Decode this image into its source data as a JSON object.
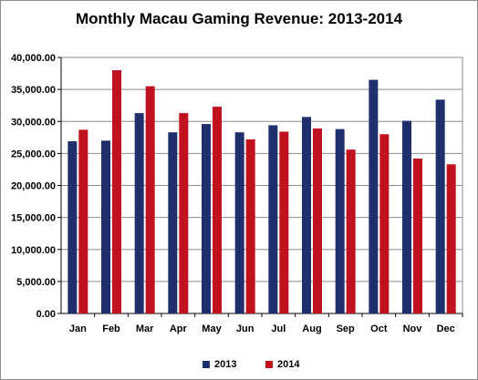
{
  "chart_data": {
    "type": "bar",
    "title": "Monthly Macau Gaming Revenue: 2013-2014",
    "xlabel": "",
    "ylabel": "",
    "ylim": [
      0,
      40000
    ],
    "y_ticks": [
      "0.00",
      "5,000.00",
      "10,000.00",
      "15,000.00",
      "20,000.00",
      "25,000.00",
      "30,000.00",
      "35,000.00",
      "40,000.00"
    ],
    "y_tick_values": [
      0,
      5000,
      10000,
      15000,
      20000,
      25000,
      30000,
      35000,
      40000
    ],
    "categories": [
      "Jan",
      "Feb",
      "Mar",
      "Apr",
      "May",
      "Jun",
      "Jul",
      "Aug",
      "Sep",
      "Oct",
      "Nov",
      "Dec"
    ],
    "series": [
      {
        "name": "2013",
        "color": "#1f2f6b",
        "values": [
          26900,
          27000,
          31300,
          28300,
          29600,
          28300,
          29400,
          30700,
          28800,
          36500,
          30100,
          33400
        ]
      },
      {
        "name": "2014",
        "color": "#c0111f",
        "values": [
          28700,
          38000,
          35500,
          31300,
          32300,
          27200,
          28400,
          28900,
          25600,
          28000,
          24200,
          23300
        ]
      }
    ],
    "grid": true,
    "legend_position": "bottom"
  }
}
